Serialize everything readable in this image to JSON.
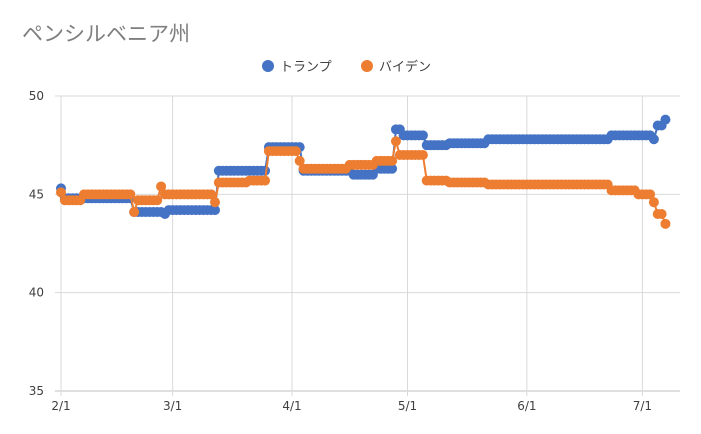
{
  "chart_data": {
    "type": "line",
    "title": "ペンシルベニア州",
    "xlabel": "",
    "ylabel": "",
    "ylim": [
      35,
      50
    ],
    "yticks": [
      "35",
      "40",
      "45",
      "50"
    ],
    "xlim": [
      "2020-02-01",
      "2020-07-07"
    ],
    "xticks": [
      {
        "date": "2020-02-01",
        "label": "2/1"
      },
      {
        "date": "2020-03-01",
        "label": "3/1"
      },
      {
        "date": "2020-04-01",
        "label": "4/1"
      },
      {
        "date": "2020-05-01",
        "label": "5/1"
      },
      {
        "date": "2020-06-01",
        "label": "6/1"
      },
      {
        "date": "2020-07-01",
        "label": "7/1"
      }
    ],
    "grid": true,
    "legend_position": "top",
    "markers": "circle",
    "step_series_note_format": "[date, value] where value holds until next date (daily points)",
    "series": [
      {
        "name": "トランプ",
        "color": "#4472C4",
        "points": [
          [
            "2020-02-01",
            45.3
          ],
          [
            "2020-02-02",
            44.8
          ],
          [
            "2020-02-20",
            44.1
          ],
          [
            "2020-02-28",
            44.0
          ],
          [
            "2020-02-29",
            44.2
          ],
          [
            "2020-03-13",
            46.2
          ],
          [
            "2020-03-26",
            47.4
          ],
          [
            "2020-04-04",
            46.2
          ],
          [
            "2020-04-17",
            46.0
          ],
          [
            "2020-04-23",
            46.3
          ],
          [
            "2020-04-28",
            48.3
          ],
          [
            "2020-04-30",
            48.0
          ],
          [
            "2020-05-06",
            47.5
          ],
          [
            "2020-05-12",
            47.6
          ],
          [
            "2020-05-22",
            47.8
          ],
          [
            "2020-06-23",
            48.0
          ],
          [
            "2020-07-04",
            47.8
          ],
          [
            "2020-07-05",
            48.5
          ],
          [
            "2020-07-07",
            48.8
          ]
        ]
      },
      {
        "name": "バイデン",
        "color": "#ED7D31",
        "points": [
          [
            "2020-02-01",
            45.1
          ],
          [
            "2020-02-02",
            44.7
          ],
          [
            "2020-02-07",
            45.0
          ],
          [
            "2020-02-20",
            44.1
          ],
          [
            "2020-02-21",
            44.7
          ],
          [
            "2020-02-27",
            45.4
          ],
          [
            "2020-02-28",
            45.0
          ],
          [
            "2020-03-12",
            44.6
          ],
          [
            "2020-03-13",
            45.6
          ],
          [
            "2020-03-21",
            45.7
          ],
          [
            "2020-03-26",
            47.2
          ],
          [
            "2020-04-03",
            46.7
          ],
          [
            "2020-04-04",
            46.3
          ],
          [
            "2020-04-16",
            46.5
          ],
          [
            "2020-04-23",
            46.7
          ],
          [
            "2020-04-28",
            47.7
          ],
          [
            "2020-04-29",
            47.0
          ],
          [
            "2020-05-06",
            45.7
          ],
          [
            "2020-05-12",
            45.6
          ],
          [
            "2020-05-22",
            45.5
          ],
          [
            "2020-06-23",
            45.2
          ],
          [
            "2020-06-30",
            45.0
          ],
          [
            "2020-07-04",
            44.6
          ],
          [
            "2020-07-05",
            44.0
          ],
          [
            "2020-07-07",
            43.5
          ]
        ]
      }
    ]
  }
}
